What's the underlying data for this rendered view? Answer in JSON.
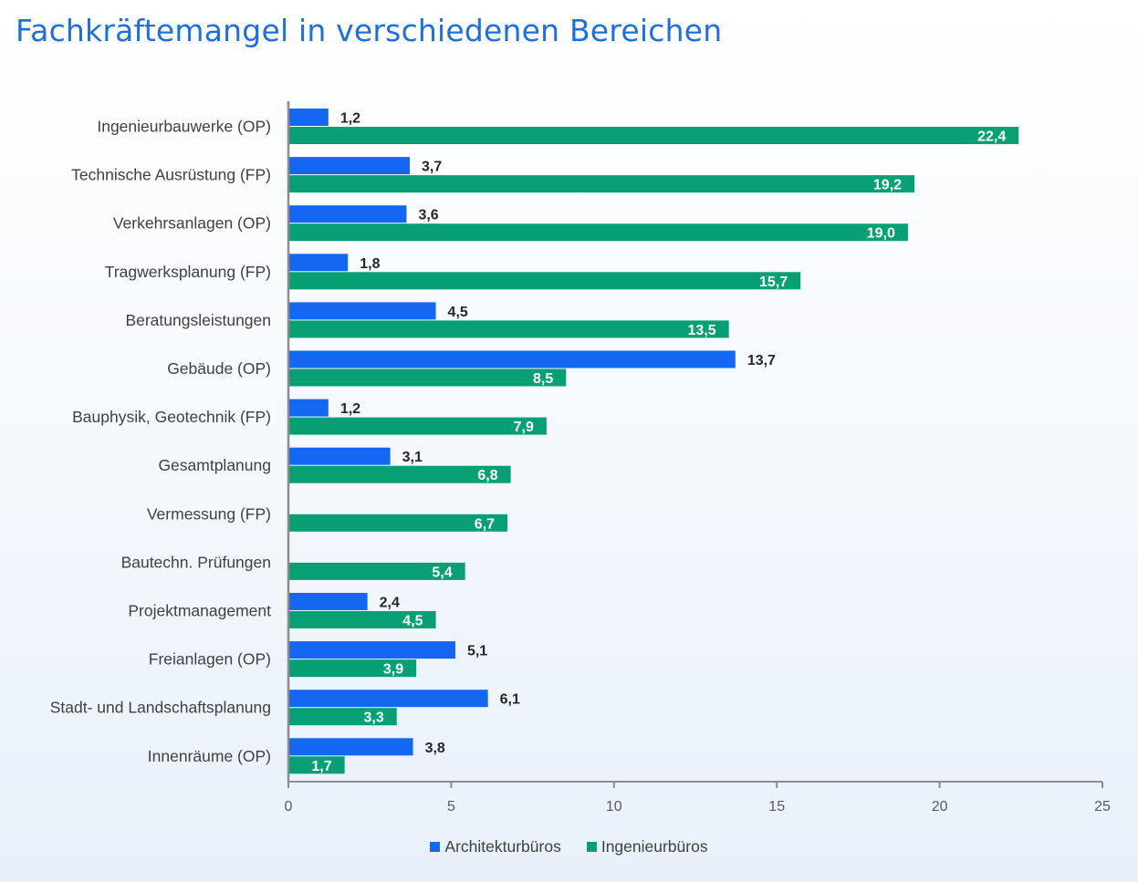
{
  "title": "Fachkräftemangel in verschiedenen Bereichen",
  "chart_data": {
    "type": "bar",
    "orientation": "horizontal",
    "title": "Fachkräftemangel in verschiedenen Bereichen",
    "categories": [
      "Ingenieurbauwerke (OP)",
      "Technische Ausrüstung (FP)",
      "Verkehrsanlagen (OP)",
      "Tragwerksplanung (FP)",
      "Beratungsleistungen",
      "Gebäude (OP)",
      "Bauphysik, Geotechnik (FP)",
      "Gesamtplanung",
      "Vermessung (FP)",
      "Bautechn. Prüfungen",
      "Projektmanagement",
      "Freianlagen (OP)",
      "Stadt- und Landschaftsplanung",
      "Innenräume (OP)"
    ],
    "series": [
      {
        "name": "Architekturbüros",
        "color": "#1467f0",
        "values": [
          1.2,
          3.7,
          3.6,
          1.8,
          4.5,
          13.7,
          1.2,
          3.1,
          null,
          null,
          2.4,
          5.1,
          6.1,
          3.8
        ],
        "labels": [
          "1,2",
          "3,7",
          "3,6",
          "1,8",
          "4,5",
          "13,7",
          "1,2",
          "3,1",
          "",
          "",
          "2,4",
          "5,1",
          "6,1",
          "3,8"
        ]
      },
      {
        "name": "Ingenieurbüros",
        "color": "#079f73",
        "values": [
          22.4,
          19.2,
          19.0,
          15.7,
          13.5,
          8.5,
          7.9,
          6.8,
          6.7,
          5.4,
          4.5,
          3.9,
          3.3,
          1.7
        ],
        "labels": [
          "22,4",
          "19,2",
          "19,0",
          "15,7",
          "13,5",
          "8,5",
          "7,9",
          "6,8",
          "6,7",
          "5,4",
          "4,5",
          "3,9",
          "3,3",
          "1,7"
        ]
      }
    ],
    "xlim": [
      0,
      25
    ],
    "xticks": [
      "0",
      "5",
      "10",
      "15",
      "20",
      "25"
    ],
    "grid": false,
    "legend": "bottom"
  }
}
